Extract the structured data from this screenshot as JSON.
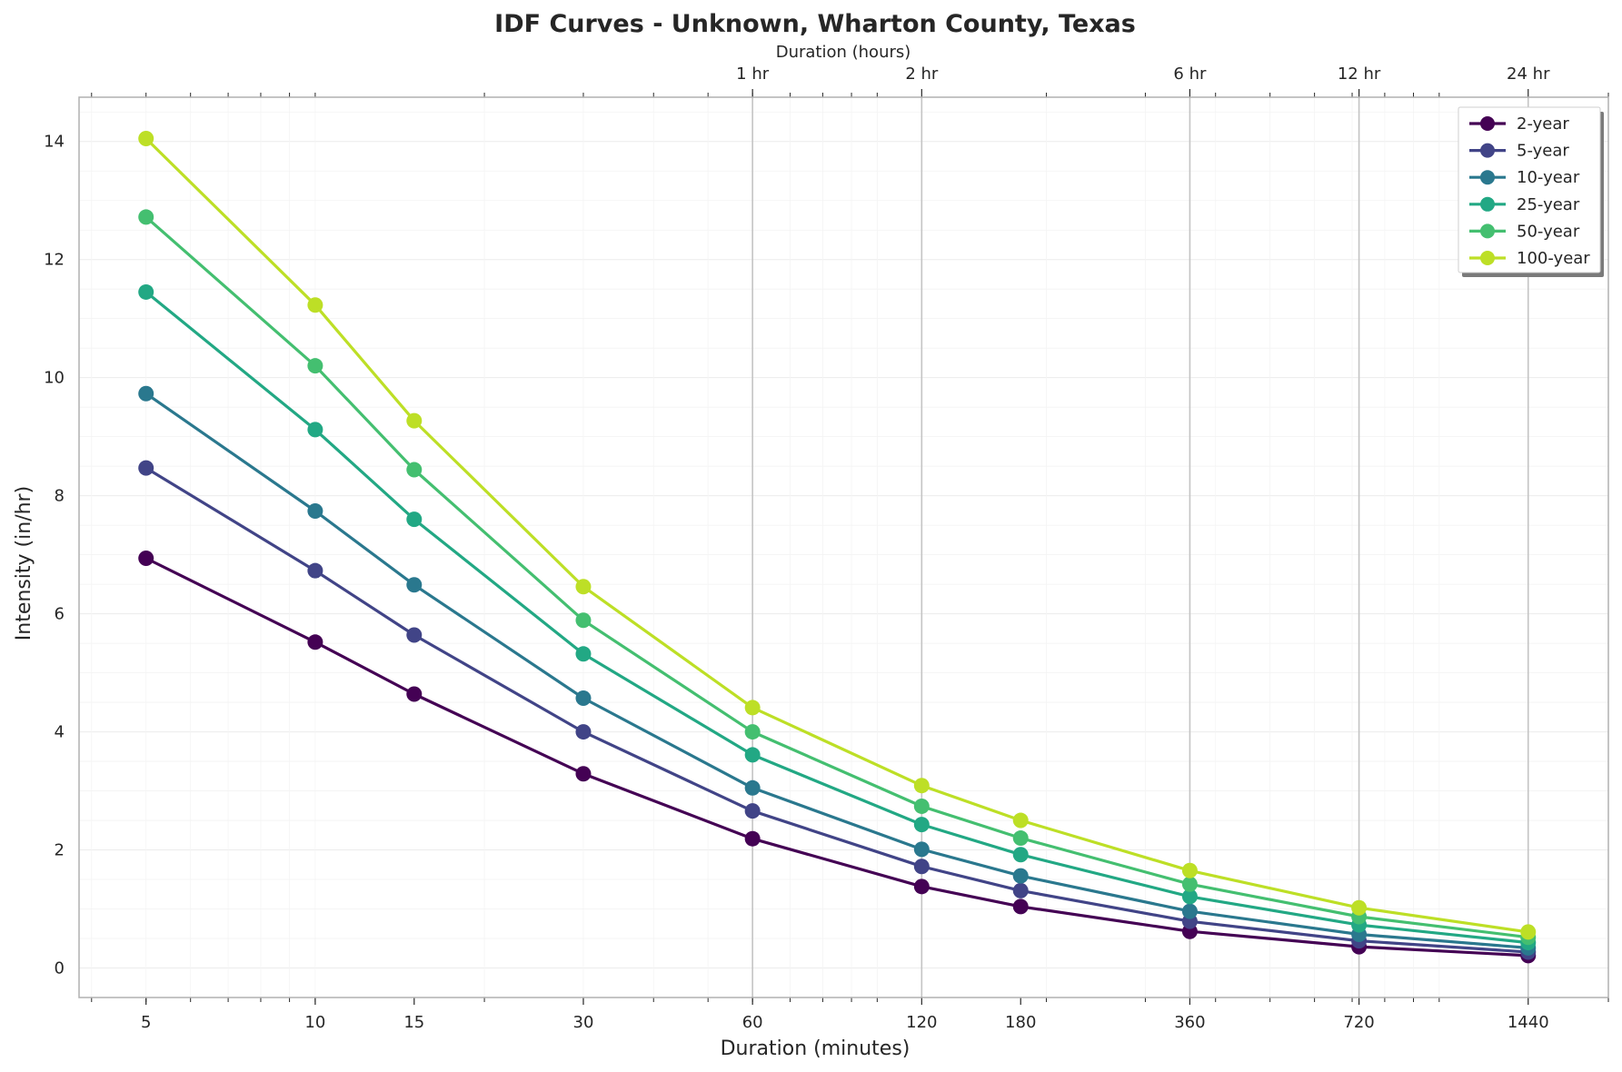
{
  "chart_data": {
    "type": "line",
    "title": "IDF Curves - Unknown, Wharton County, Texas",
    "xlabel": "Duration (minutes)",
    "ylabel": "Intensity (in/hr)",
    "secondary_xlabel": "Duration (hours)",
    "x_scale": "log",
    "x": [
      5,
      10,
      15,
      30,
      60,
      120,
      180,
      360,
      720,
      1440
    ],
    "x_tick_labels": [
      "5",
      "10",
      "15",
      "30",
      "60",
      "120",
      "180",
      "360",
      "720",
      "1440"
    ],
    "secondary_x_ticks": [
      {
        "value": 60,
        "label": "1 hr"
      },
      {
        "value": 120,
        "label": "2 hr"
      },
      {
        "value": 360,
        "label": "6 hr"
      },
      {
        "value": 720,
        "label": "12 hr"
      },
      {
        "value": 1440,
        "label": "24 hr"
      }
    ],
    "xlim": [
      3.8,
      2000
    ],
    "ylim": [
      -0.5,
      14.75
    ],
    "y_ticks": [
      0,
      2,
      4,
      6,
      8,
      10,
      12,
      14
    ],
    "grid": true,
    "legend_position": "top-right",
    "series": [
      {
        "name": "2-year",
        "color": "#440154",
        "values": [
          6.94,
          5.52,
          4.64,
          3.29,
          2.19,
          1.38,
          1.04,
          0.62,
          0.36,
          0.21
        ]
      },
      {
        "name": "5-year",
        "color": "#414487",
        "values": [
          8.47,
          6.73,
          5.64,
          4.0,
          2.66,
          1.72,
          1.31,
          0.79,
          0.46,
          0.27
        ]
      },
      {
        "name": "10-year",
        "color": "#2a788e",
        "values": [
          9.73,
          7.74,
          6.49,
          4.57,
          3.05,
          2.01,
          1.56,
          0.96,
          0.57,
          0.34
        ]
      },
      {
        "name": "25-year",
        "color": "#22a884",
        "values": [
          11.45,
          9.12,
          7.6,
          5.32,
          3.61,
          2.43,
          1.92,
          1.21,
          0.73,
          0.43
        ]
      },
      {
        "name": "50-year",
        "color": "#44bf70",
        "values": [
          12.72,
          10.2,
          8.44,
          5.89,
          4.0,
          2.74,
          2.2,
          1.42,
          0.87,
          0.52
        ]
      },
      {
        "name": "100-year",
        "color": "#bddf26",
        "values": [
          14.05,
          11.23,
          9.27,
          6.46,
          4.41,
          3.09,
          2.5,
          1.65,
          1.02,
          0.61
        ]
      }
    ]
  }
}
